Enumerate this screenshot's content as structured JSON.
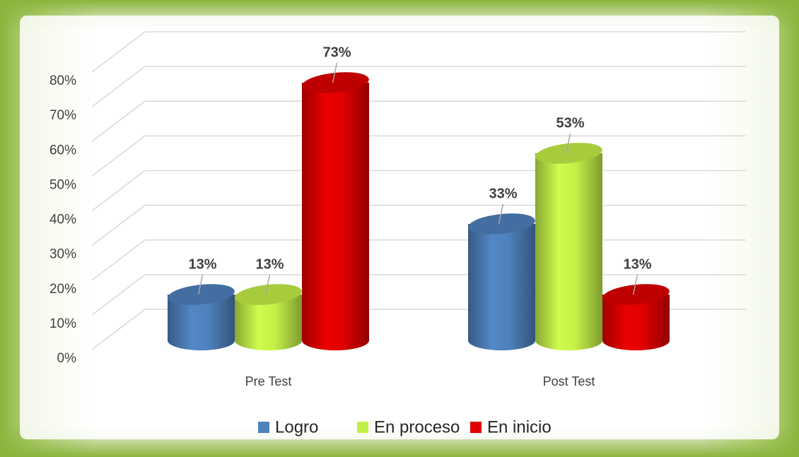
{
  "chart_data": {
    "type": "bar",
    "categories": [
      "Pre Test",
      "Post Test"
    ],
    "series": [
      {
        "name": "Logro",
        "color": "#4f81bd",
        "values": [
          13,
          33
        ],
        "value_labels": [
          "13%",
          "33%"
        ]
      },
      {
        "name": "En proceso",
        "color": "#c3f048",
        "values": [
          13,
          53
        ],
        "value_labels": [
          "13%",
          "53%"
        ]
      },
      {
        "name": "En inicio",
        "color": "#e00000",
        "values": [
          73,
          13
        ],
        "value_labels": [
          "73%",
          "13%"
        ]
      }
    ],
    "ylim": [
      0,
      80
    ],
    "yticks": [
      {
        "value": 0,
        "label": "0%"
      },
      {
        "value": 10,
        "label": "10%"
      },
      {
        "value": 20,
        "label": "20%"
      },
      {
        "value": 30,
        "label": "30%"
      },
      {
        "value": 40,
        "label": "40%"
      },
      {
        "value": 50,
        "label": "50%"
      },
      {
        "value": 60,
        "label": "60%"
      },
      {
        "value": 70,
        "label": "70%"
      },
      {
        "value": 80,
        "label": "80%"
      }
    ],
    "grid": true,
    "legend": "bottom"
  }
}
